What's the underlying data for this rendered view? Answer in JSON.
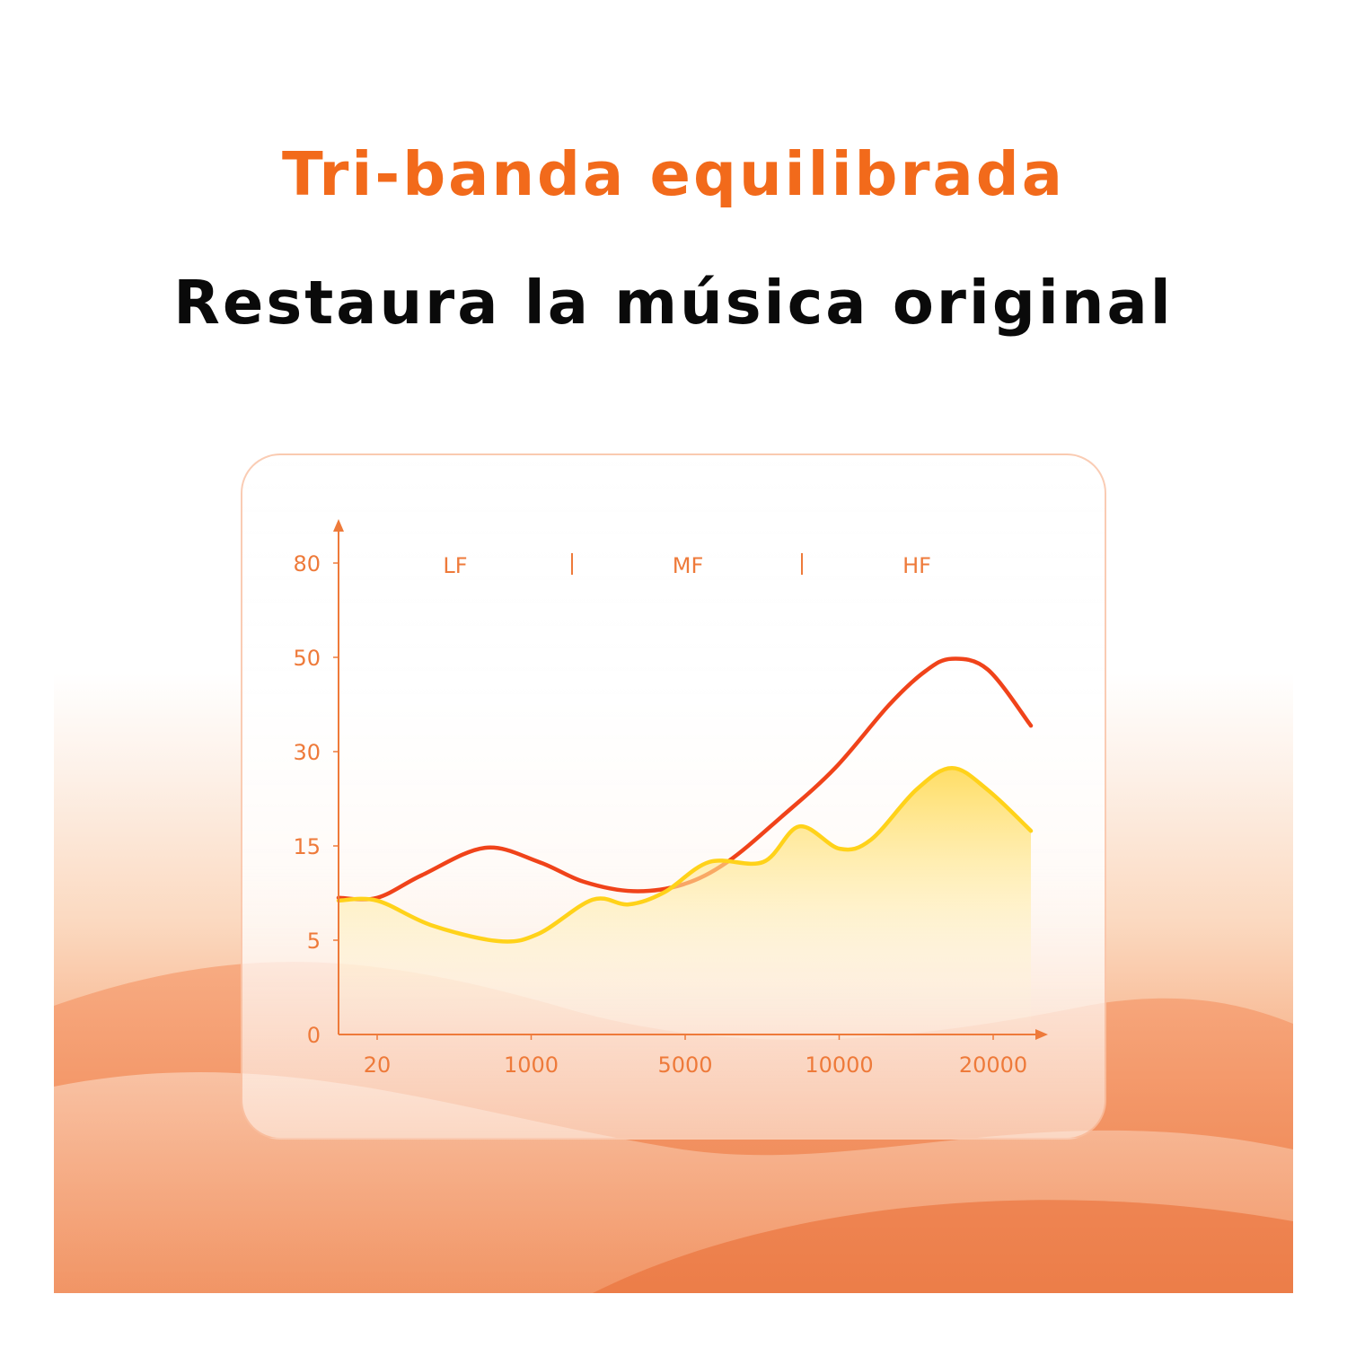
{
  "header": {
    "title": "Tri-banda equilibrada",
    "subtitle": "Restaura la música original"
  },
  "colors": {
    "title": "#f26a1b",
    "subtitle": "#0a0a0a",
    "axis": "#ee7a3a",
    "series_red": "#f0431a",
    "series_yellow": "#ffd21a"
  },
  "chart_data": {
    "type": "area",
    "band_labels": [
      "LF",
      "MF",
      "HF"
    ],
    "x_ticks": [
      20,
      1000,
      5000,
      10000,
      20000
    ],
    "y_ticks": [
      0,
      5,
      15,
      30,
      50,
      80
    ],
    "x_tick_labels": [
      "20",
      "1000",
      "5000",
      "10000",
      "20000"
    ],
    "y_tick_labels": [
      "0",
      "5",
      "15",
      "30",
      "50",
      "80"
    ],
    "x_scale": "tick-spaced (non-linear)",
    "y_scale": "tick-spaced (non-linear)",
    "grid": false,
    "series": [
      {
        "color": "#f0431a",
        "points": [
          [
            20,
            9.5
          ],
          [
            305,
            11.9
          ],
          [
            706,
            14.8
          ],
          [
            1200,
            13.3
          ],
          [
            2364,
            11.2
          ],
          [
            3648,
            10.2
          ],
          [
            4932,
            10.9
          ],
          [
            6370,
            13.3
          ],
          [
            8120,
            19.6
          ],
          [
            9870,
            27.4
          ],
          [
            13240,
            39.9
          ],
          [
            15570,
            47.0
          ],
          [
            17320,
            49.7
          ],
          [
            19650,
            47.4
          ],
          [
            22450,
            35.5
          ]
        ]
      },
      {
        "color": "#ffd21a",
        "points": [
          [
            20,
            9.2
          ],
          [
            363,
            6.6
          ],
          [
            792,
            4.95
          ],
          [
            1200,
            5.7
          ],
          [
            2596,
            9.3
          ],
          [
            3532,
            8.8
          ],
          [
            4464,
            10.1
          ],
          [
            5785,
            13.3
          ],
          [
            7535,
            13.3
          ],
          [
            8705,
            18.1
          ],
          [
            10030,
            14.7
          ],
          [
            12070,
            16.0
          ],
          [
            14990,
            23.9
          ],
          [
            17320,
            27.4
          ],
          [
            19650,
            23.9
          ],
          [
            22450,
            17.4
          ]
        ]
      }
    ]
  }
}
